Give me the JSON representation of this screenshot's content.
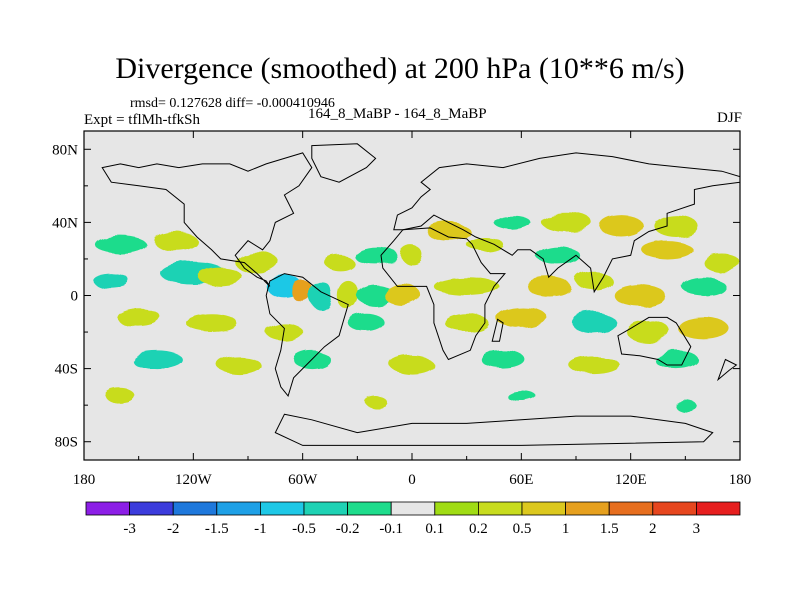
{
  "header": {
    "title": "Divergence (smoothed) at 200 hPa (10**6 m/s)",
    "stats": "rmsd= 0.127628 diff= -0.000410946",
    "experiment": "Expt = tflMh-tfkSh",
    "case": "164_8_MaBP - 164_8_MaBP",
    "season": "DJF"
  },
  "chart_data": {
    "type": "heatmap",
    "title": "Divergence (smoothed) at 200 hPa (10**6 m/s)",
    "xlabel": "",
    "ylabel": "",
    "xlim": [
      -180,
      180
    ],
    "ylim": [
      -90,
      90
    ],
    "x_ticks": [
      {
        "value": -180,
        "label": "180"
      },
      {
        "value": -120,
        "label": "120W"
      },
      {
        "value": -60,
        "label": "60W"
      },
      {
        "value": 0,
        "label": "0"
      },
      {
        "value": 60,
        "label": "60E"
      },
      {
        "value": 120,
        "label": "120E"
      },
      {
        "value": 180,
        "label": "180"
      }
    ],
    "y_ticks": [
      {
        "value": 80,
        "label": "80N"
      },
      {
        "value": 40,
        "label": "40N"
      },
      {
        "value": 0,
        "label": "0"
      },
      {
        "value": -40,
        "label": "40S"
      },
      {
        "value": -80,
        "label": "80S"
      }
    ],
    "colorbar": {
      "labels": [
        "-3",
        "-2",
        "-1.5",
        "-1",
        "-0.5",
        "-0.2",
        "-0.1",
        "0.1",
        "0.2",
        "0.5",
        "1",
        "1.5",
        "2",
        "3"
      ],
      "colors": [
        "#8c1ee6",
        "#3c3cdc",
        "#1e78dc",
        "#1ea0e6",
        "#1ec8e6",
        "#1ed2b4",
        "#1edc8c",
        "#e6e6e6",
        "#a0dc14",
        "#c8dc1e",
        "#dcc81e",
        "#e6a01e",
        "#e66e1e",
        "#e6461e",
        "#e61e1e"
      ]
    },
    "features": [
      {
        "lon": -160,
        "lat": 28,
        "rx": 14,
        "ry": 5,
        "value": -0.2
      },
      {
        "lon": -130,
        "lat": 30,
        "rx": 12,
        "ry": 5,
        "value": 0.2
      },
      {
        "lon": -165,
        "lat": 8,
        "rx": 10,
        "ry": 4,
        "value": -0.5
      },
      {
        "lon": -120,
        "lat": 12,
        "rx": 18,
        "ry": 6,
        "value": -0.5
      },
      {
        "lon": -85,
        "lat": 18,
        "rx": 12,
        "ry": 6,
        "value": 0.2
      },
      {
        "lon": -105,
        "lat": 10,
        "rx": 12,
        "ry": 5,
        "value": 0.2
      },
      {
        "lon": -70,
        "lat": 5,
        "rx": 10,
        "ry": 6,
        "value": -1
      },
      {
        "lon": -60,
        "lat": 2,
        "rx": 6,
        "ry": 6,
        "value": 1
      },
      {
        "lon": -50,
        "lat": 0,
        "rx": 6,
        "ry": 8,
        "value": -0.5
      },
      {
        "lon": -35,
        "lat": 0,
        "rx": 6,
        "ry": 8,
        "value": 0.2
      },
      {
        "lon": -20,
        "lat": 0,
        "rx": 10,
        "ry": 6,
        "value": -0.2
      },
      {
        "lon": -5,
        "lat": 0,
        "rx": 10,
        "ry": 6,
        "value": 0.5
      },
      {
        "lon": 0,
        "lat": 22,
        "rx": 6,
        "ry": 5,
        "value": 0.2
      },
      {
        "lon": -40,
        "lat": 18,
        "rx": 8,
        "ry": 4,
        "value": 0.2
      },
      {
        "lon": -20,
        "lat": 22,
        "rx": 12,
        "ry": 5,
        "value": -0.2
      },
      {
        "lon": 20,
        "lat": 35,
        "rx": 12,
        "ry": 5,
        "value": 0.5
      },
      {
        "lon": 55,
        "lat": 40,
        "rx": 10,
        "ry": 4,
        "value": -0.2
      },
      {
        "lon": 85,
        "lat": 40,
        "rx": 14,
        "ry": 5,
        "value": 0.2
      },
      {
        "lon": 115,
        "lat": 38,
        "rx": 12,
        "ry": 6,
        "value": 0.5
      },
      {
        "lon": 145,
        "lat": 38,
        "rx": 12,
        "ry": 6,
        "value": 0.2
      },
      {
        "lon": 40,
        "lat": 28,
        "rx": 10,
        "ry": 4,
        "value": 0.2
      },
      {
        "lon": 80,
        "lat": 22,
        "rx": 12,
        "ry": 5,
        "value": -0.2
      },
      {
        "lon": 140,
        "lat": 25,
        "rx": 14,
        "ry": 5,
        "value": 0.5
      },
      {
        "lon": 170,
        "lat": 18,
        "rx": 10,
        "ry": 5,
        "value": 0.2
      },
      {
        "lon": 30,
        "lat": 5,
        "rx": 18,
        "ry": 5,
        "value": 0.2
      },
      {
        "lon": 75,
        "lat": 5,
        "rx": 12,
        "ry": 5,
        "value": 0.5
      },
      {
        "lon": 100,
        "lat": 8,
        "rx": 10,
        "ry": 5,
        "value": 0.2
      },
      {
        "lon": 125,
        "lat": 0,
        "rx": 14,
        "ry": 6,
        "value": 0.5
      },
      {
        "lon": 160,
        "lat": 5,
        "rx": 12,
        "ry": 5,
        "value": -0.2
      },
      {
        "lon": -150,
        "lat": -12,
        "rx": 12,
        "ry": 5,
        "value": 0.2
      },
      {
        "lon": -110,
        "lat": -15,
        "rx": 14,
        "ry": 5,
        "value": 0.2
      },
      {
        "lon": -70,
        "lat": -20,
        "rx": 10,
        "ry": 5,
        "value": 0.2
      },
      {
        "lon": -25,
        "lat": -15,
        "rx": 10,
        "ry": 5,
        "value": -0.2
      },
      {
        "lon": 30,
        "lat": -15,
        "rx": 12,
        "ry": 5,
        "value": 0.2
      },
      {
        "lon": 60,
        "lat": -12,
        "rx": 14,
        "ry": 6,
        "value": 0.5
      },
      {
        "lon": 100,
        "lat": -15,
        "rx": 12,
        "ry": 6,
        "value": -0.5
      },
      {
        "lon": 130,
        "lat": -20,
        "rx": 12,
        "ry": 6,
        "value": 0.2
      },
      {
        "lon": 160,
        "lat": -18,
        "rx": 14,
        "ry": 6,
        "value": 0.5
      },
      {
        "lon": -140,
        "lat": -35,
        "rx": 14,
        "ry": 5,
        "value": -0.5
      },
      {
        "lon": -95,
        "lat": -38,
        "rx": 12,
        "ry": 5,
        "value": 0.2
      },
      {
        "lon": -55,
        "lat": -35,
        "rx": 10,
        "ry": 5,
        "value": -0.2
      },
      {
        "lon": 0,
        "lat": -38,
        "rx": 12,
        "ry": 5,
        "value": 0.2
      },
      {
        "lon": 50,
        "lat": -35,
        "rx": 12,
        "ry": 5,
        "value": -0.2
      },
      {
        "lon": 100,
        "lat": -38,
        "rx": 14,
        "ry": 5,
        "value": 0.2
      },
      {
        "lon": 145,
        "lat": -35,
        "rx": 12,
        "ry": 5,
        "value": -0.2
      },
      {
        "lon": -160,
        "lat": -55,
        "rx": 8,
        "ry": 4,
        "value": 0.2
      },
      {
        "lon": -20,
        "lat": -58,
        "rx": 6,
        "ry": 3,
        "value": 0.2
      },
      {
        "lon": 60,
        "lat": -55,
        "rx": 8,
        "ry": 3,
        "value": -0.2
      },
      {
        "lon": 150,
        "lat": -60,
        "rx": 6,
        "ry": 3,
        "value": -0.2
      }
    ],
    "coastlines": [
      {
        "name": "north-america",
        "points": [
          [
            -170,
            70
          ],
          [
            -160,
            72
          ],
          [
            -150,
            70
          ],
          [
            -140,
            72
          ],
          [
            -128,
            70
          ],
          [
            -115,
            72
          ],
          [
            -100,
            72
          ],
          [
            -90,
            68
          ],
          [
            -80,
            72
          ],
          [
            -70,
            75
          ],
          [
            -60,
            78
          ],
          [
            -55,
            70
          ],
          [
            -62,
            60
          ],
          [
            -70,
            55
          ],
          [
            -65,
            45
          ],
          [
            -75,
            40
          ],
          [
            -78,
            30
          ],
          [
            -82,
            25
          ],
          [
            -90,
            30
          ],
          [
            -97,
            22
          ],
          [
            -92,
            15
          ],
          [
            -85,
            10
          ],
          [
            -80,
            8
          ],
          [
            -78,
            5
          ],
          [
            -85,
            12
          ],
          [
            -92,
            18
          ],
          [
            -105,
            20
          ],
          [
            -110,
            25
          ],
          [
            -118,
            32
          ],
          [
            -125,
            40
          ],
          [
            -125,
            50
          ],
          [
            -135,
            58
          ],
          [
            -150,
            60
          ],
          [
            -165,
            62
          ],
          [
            -170,
            70
          ]
        ]
      },
      {
        "name": "south-america",
        "points": [
          [
            -78,
            8
          ],
          [
            -70,
            12
          ],
          [
            -60,
            10
          ],
          [
            -50,
            2
          ],
          [
            -35,
            -5
          ],
          [
            -38,
            -15
          ],
          [
            -40,
            -22
          ],
          [
            -48,
            -28
          ],
          [
            -55,
            -35
          ],
          [
            -60,
            -40
          ],
          [
            -65,
            -45
          ],
          [
            -68,
            -55
          ],
          [
            -72,
            -50
          ],
          [
            -75,
            -40
          ],
          [
            -72,
            -30
          ],
          [
            -70,
            -18
          ],
          [
            -78,
            -10
          ],
          [
            -80,
            0
          ],
          [
            -78,
            8
          ]
        ]
      },
      {
        "name": "eurasia",
        "points": [
          [
            -10,
            36
          ],
          [
            -8,
            44
          ],
          [
            0,
            48
          ],
          [
            5,
            54
          ],
          [
            10,
            58
          ],
          [
            5,
            62
          ],
          [
            15,
            70
          ],
          [
            30,
            72
          ],
          [
            50,
            70
          ],
          [
            70,
            75
          ],
          [
            90,
            78
          ],
          [
            110,
            76
          ],
          [
            130,
            72
          ],
          [
            150,
            70
          ],
          [
            170,
            68
          ],
          [
            180,
            65
          ],
          [
            180,
            62
          ],
          [
            165,
            60
          ],
          [
            155,
            58
          ],
          [
            155,
            50
          ],
          [
            140,
            45
          ],
          [
            140,
            38
          ],
          [
            130,
            35
          ],
          [
            122,
            30
          ],
          [
            120,
            22
          ],
          [
            110,
            20
          ],
          [
            105,
            10
          ],
          [
            100,
            2
          ],
          [
            98,
            15
          ],
          [
            90,
            22
          ],
          [
            80,
            15
          ],
          [
            75,
            10
          ],
          [
            72,
            20
          ],
          [
            65,
            25
          ],
          [
            58,
            25
          ],
          [
            55,
            22
          ],
          [
            45,
            28
          ],
          [
            35,
            32
          ],
          [
            28,
            36
          ],
          [
            20,
            40
          ],
          [
            12,
            44
          ],
          [
            5,
            38
          ],
          [
            -5,
            36
          ],
          [
            -10,
            36
          ]
        ]
      },
      {
        "name": "africa",
        "points": [
          [
            -16,
            15
          ],
          [
            -17,
            22
          ],
          [
            -10,
            30
          ],
          [
            -5,
            36
          ],
          [
            10,
            37
          ],
          [
            20,
            32
          ],
          [
            30,
            31
          ],
          [
            33,
            28
          ],
          [
            38,
            18
          ],
          [
            43,
            12
          ],
          [
            51,
            12
          ],
          [
            45,
            5
          ],
          [
            40,
            -5
          ],
          [
            40,
            -15
          ],
          [
            35,
            -22
          ],
          [
            32,
            -30
          ],
          [
            20,
            -35
          ],
          [
            17,
            -30
          ],
          [
            12,
            -15
          ],
          [
            12,
            -5
          ],
          [
            8,
            5
          ],
          [
            0,
            5
          ],
          [
            -8,
            5
          ],
          [
            -16,
            15
          ]
        ]
      },
      {
        "name": "australia",
        "points": [
          [
            113,
            -22
          ],
          [
            115,
            -32
          ],
          [
            125,
            -33
          ],
          [
            135,
            -35
          ],
          [
            140,
            -38
          ],
          [
            148,
            -38
          ],
          [
            153,
            -28
          ],
          [
            145,
            -15
          ],
          [
            140,
            -12
          ],
          [
            130,
            -12
          ],
          [
            120,
            -18
          ],
          [
            113,
            -22
          ]
        ]
      },
      {
        "name": "greenland",
        "points": [
          [
            -55,
            82
          ],
          [
            -30,
            83
          ],
          [
            -20,
            75
          ],
          [
            -25,
            70
          ],
          [
            -40,
            62
          ],
          [
            -50,
            65
          ],
          [
            -55,
            75
          ],
          [
            -55,
            82
          ]
        ]
      },
      {
        "name": "antarctica",
        "points": [
          [
            -70,
            -65
          ],
          [
            -55,
            -68
          ],
          [
            -30,
            -75
          ],
          [
            0,
            -70
          ],
          [
            30,
            -70
          ],
          [
            60,
            -68
          ],
          [
            90,
            -66
          ],
          [
            120,
            -66
          ],
          [
            150,
            -70
          ],
          [
            165,
            -75
          ],
          [
            160,
            -80
          ],
          [
            60,
            -82
          ],
          [
            0,
            -82
          ],
          [
            -60,
            -82
          ],
          [
            -75,
            -75
          ],
          [
            -70,
            -65
          ]
        ]
      },
      {
        "name": "madagascar",
        "points": [
          [
            44,
            -25
          ],
          [
            48,
            -25
          ],
          [
            50,
            -15
          ],
          [
            47,
            -13
          ],
          [
            44,
            -25
          ]
        ]
      },
      {
        "name": "new-zealand",
        "points": [
          [
            168,
            -46
          ],
          [
            174,
            -41
          ],
          [
            178,
            -38
          ],
          [
            172,
            -35
          ],
          [
            168,
            -46
          ]
        ]
      }
    ]
  }
}
